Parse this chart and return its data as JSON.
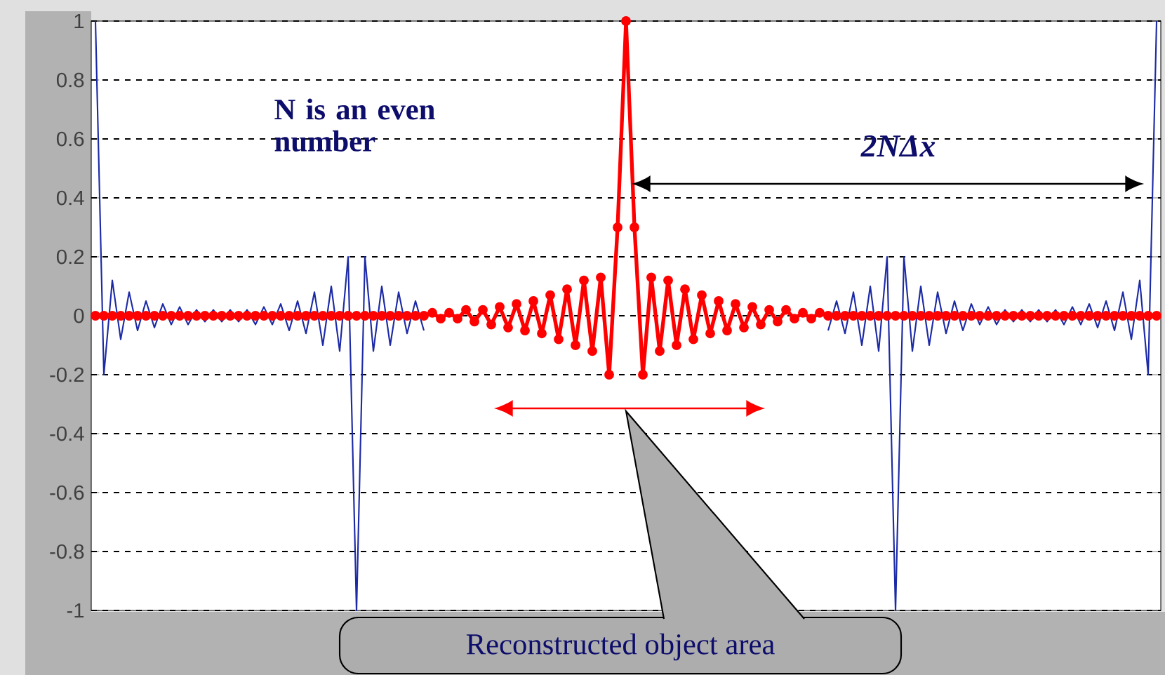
{
  "chart_data": {
    "type": "line",
    "categories": [
      null,
      null,
      null,
      null,
      null,
      null,
      null,
      null,
      null,
      null,
      null,
      null,
      null,
      null,
      null,
      null,
      null,
      null,
      null,
      null,
      null,
      null,
      null,
      null,
      null,
      null,
      null,
      null,
      null,
      null,
      null,
      null,
      null,
      null,
      null,
      null,
      null,
      null,
      null,
      null,
      null,
      null,
      null,
      null,
      null,
      null,
      null,
      null,
      null,
      null,
      null,
      null,
      null,
      null,
      null,
      null,
      null,
      null,
      null,
      null,
      null,
      null,
      null,
      null,
      null,
      null,
      null,
      null,
      null,
      null,
      null,
      null,
      null,
      null,
      null,
      null,
      null,
      null,
      null,
      null,
      null,
      null,
      null,
      null,
      null,
      null,
      null,
      null,
      null,
      null,
      null,
      null,
      null,
      null,
      null,
      null,
      null,
      null,
      null,
      null,
      null,
      null,
      null,
      null,
      null,
      null,
      null,
      null,
      null,
      null,
      null,
      null,
      null,
      null,
      null,
      null,
      null,
      null,
      null,
      null,
      null,
      null,
      null,
      null,
      null,
      null,
      null
    ],
    "series": [
      {
        "color": "#1c2aa6",
        "marker": "none",
        "values": [
          1,
          -0.2,
          0.12,
          -0.08,
          0.08,
          -0.05,
          0.05,
          -0.04,
          0.04,
          -0.03,
          0.03,
          -0.03,
          0.02,
          -0.02,
          0.02,
          -0.02,
          0.02,
          -0.02,
          0.02,
          -0.03,
          0.03,
          -0.03,
          0.04,
          -0.05,
          0.05,
          -0.06,
          0.08,
          -0.1,
          0.1,
          -0.12,
          0.2,
          -1,
          0.2,
          -0.12,
          0.1,
          -0.1,
          0.08,
          -0.06,
          0.05,
          -0.05,
          null,
          null,
          null,
          null,
          null,
          null,
          null,
          null,
          null,
          null,
          null,
          null,
          null,
          null,
          null,
          null,
          null,
          null,
          null,
          null,
          null,
          null,
          null,
          null,
          null,
          null,
          null,
          null,
          null,
          null,
          null,
          null,
          null,
          null,
          null,
          null,
          null,
          null,
          null,
          null,
          null,
          null,
          null,
          null,
          null,
          null,
          null,
          -0.05,
          0.05,
          -0.06,
          0.08,
          -0.1,
          0.1,
          -0.12,
          0.2,
          -1,
          0.2,
          -0.12,
          0.1,
          -0.1,
          0.08,
          -0.06,
          0.05,
          -0.05,
          0.04,
          -0.03,
          0.03,
          -0.03,
          0.02,
          -0.02,
          0.02,
          -0.02,
          0.02,
          -0.02,
          0.02,
          -0.03,
          0.03,
          -0.03,
          0.04,
          -0.04,
          0.05,
          -0.05,
          0.08,
          -0.08,
          0.12,
          -0.2,
          1
        ]
      },
      {
        "color": "#ff0000",
        "marker": "circle",
        "values": [
          0,
          0,
          0,
          0,
          0,
          0,
          0,
          0,
          0,
          0,
          0,
          0,
          0,
          0,
          0,
          0,
          0,
          0,
          0,
          0,
          0,
          0,
          0,
          0,
          0,
          0,
          0,
          0,
          0,
          0,
          0,
          0,
          0,
          0,
          0,
          0,
          0,
          0,
          0,
          0,
          0.01,
          -0.01,
          0.01,
          -0.01,
          0.02,
          -0.02,
          0.02,
          -0.03,
          0.03,
          -0.04,
          0.04,
          -0.05,
          0.05,
          -0.06,
          0.07,
          -0.08,
          0.09,
          -0.1,
          0.12,
          -0.12,
          0.13,
          -0.2,
          0.3,
          1,
          0.3,
          -0.2,
          0.13,
          -0.12,
          0.12,
          -0.1,
          0.09,
          -0.08,
          0.07,
          -0.06,
          0.05,
          -0.05,
          0.04,
          -0.04,
          0.03,
          -0.03,
          0.02,
          -0.02,
          0.02,
          -0.01,
          0.01,
          -0.01,
          0.01,
          0,
          0,
          0,
          0,
          0,
          0,
          0,
          0,
          0,
          0,
          0,
          0,
          0,
          0,
          0,
          0,
          0,
          0,
          0,
          0,
          0,
          0,
          0,
          0,
          0,
          0,
          0,
          0,
          0,
          0,
          0,
          0,
          0,
          0,
          0,
          0,
          0,
          0,
          0,
          0
        ]
      }
    ],
    "ylim": [
      -1,
      1
    ],
    "yticks": [
      -1,
      -0.8,
      -0.6,
      -0.4,
      -0.2,
      0,
      0.2,
      0.4,
      0.6,
      0.8,
      1
    ],
    "grid": "y",
    "line_style": "solid",
    "annotations": [
      "N is an even number",
      "2NΔx",
      "Reconstructed object area"
    ]
  }
}
